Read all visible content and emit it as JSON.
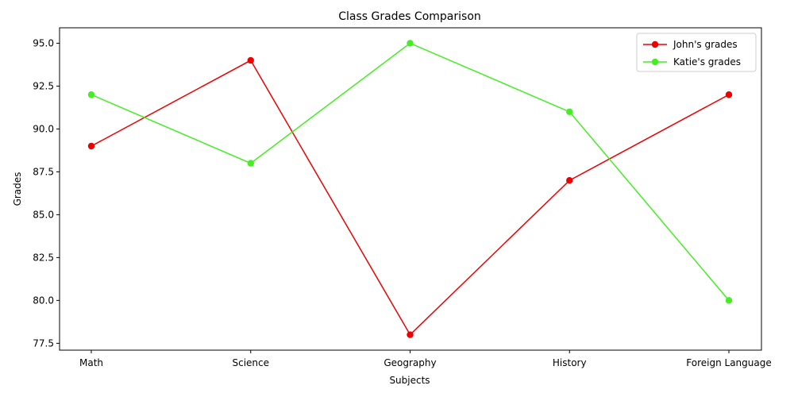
{
  "chart_data": {
    "type": "line",
    "title": "Class Grades Comparison",
    "xlabel": "Subjects",
    "ylabel": "Grades",
    "categories": [
      "Math",
      "Science",
      "Geography",
      "History",
      "Foreign Language"
    ],
    "series": [
      {
        "name": "John's grades",
        "color": "#ee0000",
        "values": [
          89,
          94,
          78,
          87,
          92
        ]
      },
      {
        "name": "Katie's grades",
        "color": "#44ee22",
        "values": [
          92,
          88,
          95,
          91,
          80
        ]
      }
    ],
    "ylim": [
      77.1,
      95.9
    ],
    "yticks": [
      77.5,
      80.0,
      82.5,
      85.0,
      87.5,
      90.0,
      92.5,
      95.0
    ],
    "ytick_labels": [
      "77.5",
      "80.0",
      "82.5",
      "85.0",
      "87.5",
      "90.0",
      "92.5",
      "95.0"
    ],
    "legend_position": "top-right",
    "grid": false
  }
}
